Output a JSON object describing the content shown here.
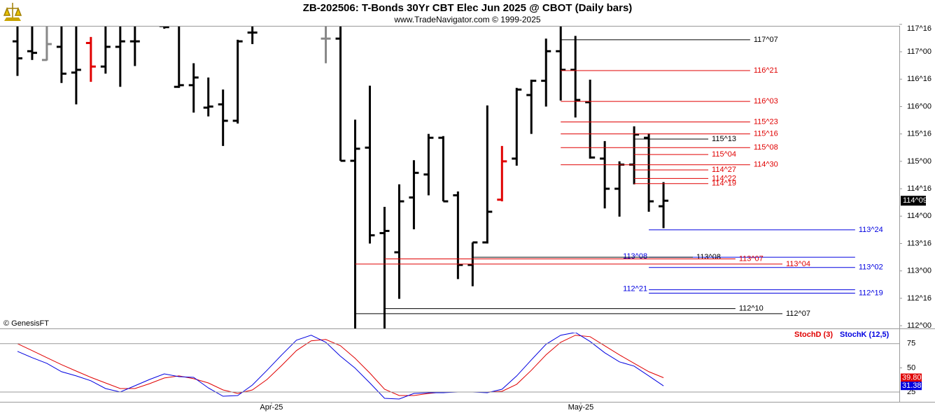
{
  "chart_data": [
    {
      "type": "ohlc",
      "title": "ZB-202506:  T-Bonds 30Yr CBT Elec Jun 2025 @ CBOT  (Daily bars)",
      "subtitle": "www.TradeNavigator.com © 1999-2025",
      "watermark": "© GenesisFT",
      "xlim": [
        -1.19,
        60.06
      ],
      "ylim": [
        111.95,
        117.46
      ],
      "yticks": [
        {
          "value": 112,
          "label": "112^00"
        },
        {
          "value": 112.5,
          "label": "112^16"
        },
        {
          "value": 113,
          "label": "113^00"
        },
        {
          "value": 113.5,
          "label": "113^16"
        },
        {
          "value": 114,
          "label": "114^00"
        },
        {
          "value": 114.5,
          "label": "114^16"
        },
        {
          "value": 115,
          "label": "115^00"
        },
        {
          "value": 115.5,
          "label": "115^16"
        },
        {
          "value": 116,
          "label": "116^00"
        },
        {
          "value": 116.5,
          "label": "116^16"
        },
        {
          "value": 117,
          "label": "117^00"
        },
        {
          "value": 117.5,
          "label": "117^16"
        }
      ],
      "open": [
        117.19,
        117.01,
        116.85,
        117.09,
        116.62,
        117.16,
        116.73,
        117.09,
        117.19,
        117.7,
        117.47,
        116.36,
        116.39,
        115.98,
        116.04,
        115.74,
        117.35,
        117.8,
        117.9,
        117.7,
        117.8,
        117.24,
        117.24,
        115.01,
        115.25,
        113.69,
        113.34,
        114.34,
        114.76,
        115.43,
        114.38,
        113.11,
        113.52,
        114.3,
        115.05,
        116.21,
        116.47,
        117.01,
        116.67,
        116.08,
        115.05,
        114.5,
        114.94,
        115.43,
        114.18
      ],
      "high": [
        117.6,
        117.6,
        117.6,
        117.6,
        117.6,
        117.27,
        117.6,
        117.6,
        117.6,
        118.0,
        117.6,
        117.6,
        116.79,
        116.53,
        116.31,
        117.22,
        117.6,
        118.1,
        118.2,
        118.0,
        118.0,
        117.6,
        117.6,
        115.76,
        116.38,
        114.17,
        114.58,
        115.02,
        115.5,
        115.46,
        114.45,
        113.52,
        116.02,
        115.28,
        116.34,
        116.49,
        117.24,
        117.53,
        117.29,
        116.49,
        115.37,
        115.0,
        115.64,
        115.51,
        114.62
      ],
      "low": [
        116.56,
        116.85,
        116.84,
        116.43,
        116.04,
        116.45,
        116.6,
        116.36,
        116.74,
        117.55,
        117.42,
        116.34,
        115.89,
        115.82,
        115.28,
        115.69,
        117.14,
        117.6,
        117.6,
        117.55,
        117.6,
        116.79,
        115.01,
        111.9,
        113.5,
        111.9,
        112.49,
        113.76,
        114.38,
        114.27,
        112.85,
        112.72,
        113.5,
        114.27,
        114.92,
        115.5,
        116.0,
        116.11,
        115.8,
        115.05,
        114.14,
        113.99,
        114.58,
        114.08,
        113.78
      ],
      "close": [
        116.88,
        116.98,
        117.14,
        116.6,
        116.67,
        116.73,
        117.09,
        117.19,
        117.19,
        117.6,
        117.45,
        116.39,
        116.53,
        116.0,
        115.74,
        117.19,
        117.35,
        117.9,
        117.7,
        117.8,
        117.7,
        117.24,
        115.01,
        115.23,
        113.65,
        113.73,
        114.27,
        114.79,
        115.43,
        114.27,
        113.11,
        113.52,
        114.08,
        115.0,
        116.31,
        116.47,
        117.01,
        116.67,
        116.12,
        115.07,
        114.5,
        114.94,
        115.49,
        114.27,
        114.28125
      ],
      "colors": [
        "#000",
        "#000",
        "#888",
        "#000",
        "#000",
        "#e00000",
        "#000",
        "#000",
        "#000",
        "#000",
        "#000",
        "#000",
        "#000",
        "#000",
        "#000",
        "#000",
        "#000",
        "#000",
        "#000",
        "#000",
        "#000",
        "#888",
        "#000",
        "#000",
        "#000",
        "#000",
        "#000",
        "#000",
        "#000",
        "#000",
        "#000",
        "#000",
        "#000",
        "#e00000",
        "#000",
        "#000",
        "#000",
        "#000",
        "#000",
        "#000",
        "#000",
        "#000",
        "#000",
        "#000",
        "#000"
      ],
      "last_label": "114^09",
      "levels": [
        {
          "value": 117.21875,
          "label": "117^07",
          "color": "#000000",
          "from": 37,
          "to": 49.9
        },
        {
          "value": 116.65625,
          "label": "116^21",
          "color": "#e00000",
          "from": 37,
          "to": 49.9
        },
        {
          "value": 116.09375,
          "label": "116^03",
          "color": "#e00000",
          "from": 37,
          "to": 49.9
        },
        {
          "value": 115.71875,
          "label": "115^23",
          "color": "#e00000",
          "from": 37,
          "to": 49.9
        },
        {
          "value": 115.5,
          "label": "115^16",
          "color": "#e00000",
          "from": 37,
          "to": 49.9
        },
        {
          "value": 115.25,
          "label": "115^08",
          "color": "#e00000",
          "from": 37,
          "to": 49.9
        },
        {
          "value": 114.9375,
          "label": "114^30",
          "color": "#e00000",
          "from": 37,
          "to": 49.9
        },
        {
          "value": 115.40625,
          "label": "115^13",
          "color": "#000000",
          "from": 42,
          "to": 47.05
        },
        {
          "value": 115.125,
          "label": "115^04",
          "color": "#e00000",
          "from": 42,
          "to": 47.05
        },
        {
          "value": 114.84375,
          "label": "114^27",
          "color": "#e00000",
          "from": 42,
          "to": 47.05
        },
        {
          "value": 114.6875,
          "label": "114^22",
          "color": "#e00000",
          "from": 42,
          "to": 47.05
        },
        {
          "value": 114.59375,
          "label": "114^19",
          "color": "#e00000",
          "from": 42,
          "to": 47.05
        },
        {
          "value": 113.75,
          "label": "113^24",
          "color": "#0000e0",
          "from": 43,
          "to": 57.05
        },
        {
          "value": 113.25,
          "label": "113^08",
          "color": "#0000e0",
          "from": 43,
          "to": 57.05
        },
        {
          "value": 113.25,
          "label": "113^08",
          "color": "#000000",
          "from": 31,
          "to": 46
        },
        {
          "value": 113.21875,
          "label": "113^07",
          "color": "#e00000",
          "from": 25,
          "to": 48.9
        },
        {
          "value": 113.125,
          "label": "113^04",
          "color": "#e00000",
          "from": 23,
          "to": 52.1
        },
        {
          "value": 113.0625,
          "label": "113^02",
          "color": "#0000e0",
          "from": 43,
          "to": 57.05
        },
        {
          "value": 112.65625,
          "label": "112^21",
          "color": "#0000e0",
          "from": 43,
          "to": 57.05
        },
        {
          "value": 112.59375,
          "label": "112^19",
          "color": "#0000e0",
          "from": 43,
          "to": 57.05
        },
        {
          "value": 112.3125,
          "label": "112^10",
          "color": "#000000",
          "from": 25,
          "to": 48.9
        },
        {
          "value": 112.21875,
          "label": "112^07",
          "color": "#000000",
          "from": 23,
          "to": 52.1
        }
      ]
    },
    {
      "type": "line",
      "xlim": [
        -1.19,
        60.06
      ],
      "xticks": [
        {
          "value": 17.3,
          "label": "Apr-25"
        },
        {
          "value": 38.37,
          "label": "May-25"
        }
      ],
      "ylim": [
        14.9,
        87.1
      ],
      "yticks": [
        25,
        50,
        75
      ],
      "series": [
        {
          "name": "StochD (3)",
          "color": "#e00000",
          "last_label": "39.80",
          "values": [
            75,
            67.8,
            60.5,
            53.3,
            46.7,
            40.2,
            34.4,
            28.6,
            28.6,
            33.7,
            39.5,
            41.7,
            38.8,
            34.4,
            27.2,
            23.6,
            27.2,
            38.0,
            52.5,
            67.8,
            77.9,
            79.3,
            72.8,
            59.8,
            44.6,
            27.9,
            21.4,
            21.4,
            23.6,
            25.0,
            25.0,
            25.0,
            25.0,
            25.7,
            33.0,
            47.5,
            63.4,
            76.4,
            83.7,
            82.2,
            72.8,
            63.4,
            54.7,
            46.0,
            39.8
          ]
        },
        {
          "name": "StochK (12,5)",
          "color": "#0000e0",
          "values": [
            67.0,
            60.5,
            54.7,
            46.0,
            41.7,
            36.6,
            28.6,
            25.0,
            31.5,
            38.0,
            43.8,
            40.9,
            40.2,
            29.3,
            20.7,
            21.4,
            32.2,
            47.5,
            63.4,
            78.6,
            83.7,
            76.4,
            62.0,
            49.6,
            34.4,
            18.5,
            17.8,
            23.6,
            24.3,
            24.3,
            25.0,
            25.0,
            24.3,
            27.9,
            41.7,
            58.3,
            74.3,
            83.7,
            86.6,
            77.2,
            65.6,
            56.2,
            51.8,
            41.7,
            31.38
          ]
        }
      ]
    }
  ]
}
